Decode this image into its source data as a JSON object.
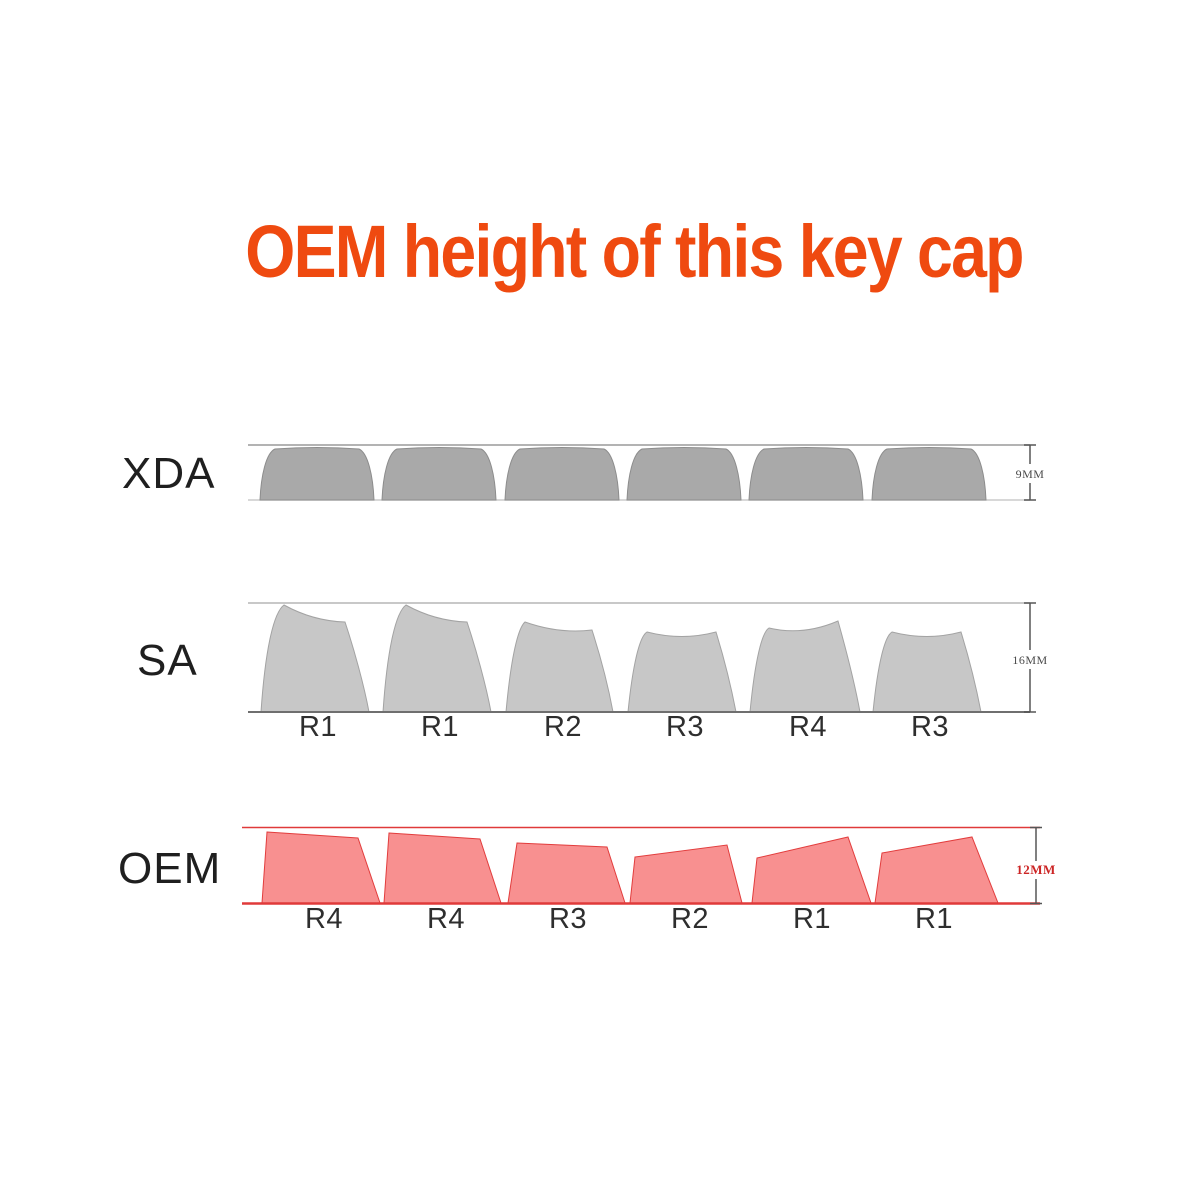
{
  "title": "OEM height of this key cap",
  "colors": {
    "title_color": "#ef4a10",
    "xda_cap_fill": "#a9a9a9",
    "xda_cap_stroke": "#8d8d8d",
    "sa_cap_fill": "#c7c7c7",
    "sa_cap_stroke": "#a3a3a3",
    "oem_cap_fill": "#f89090",
    "oem_cap_stroke": "#e23d3d",
    "oem_line": "#e03a3a",
    "dim_text": "#4a4a4a",
    "oem_dim_text": "#cc2525",
    "label_text": "#1f1f1f"
  },
  "rows": [
    {
      "name": "XDA",
      "height_label": "9MM",
      "keycap_count": 6,
      "key_labels": []
    },
    {
      "name": "SA",
      "height_label": "16MM",
      "keycap_count": 6,
      "key_labels": [
        "R1",
        "R1",
        "R2",
        "R3",
        "R4",
        "R3"
      ]
    },
    {
      "name": "OEM",
      "height_label": "12MM",
      "keycap_count": 6,
      "key_labels": [
        "R4",
        "R4",
        "R3",
        "R2",
        "R1",
        "R1"
      ]
    }
  ],
  "key_label_centers": {
    "sa": [
      318,
      440,
      563,
      685,
      808,
      930
    ],
    "oem": [
      324,
      446,
      568,
      690,
      812,
      934
    ]
  }
}
